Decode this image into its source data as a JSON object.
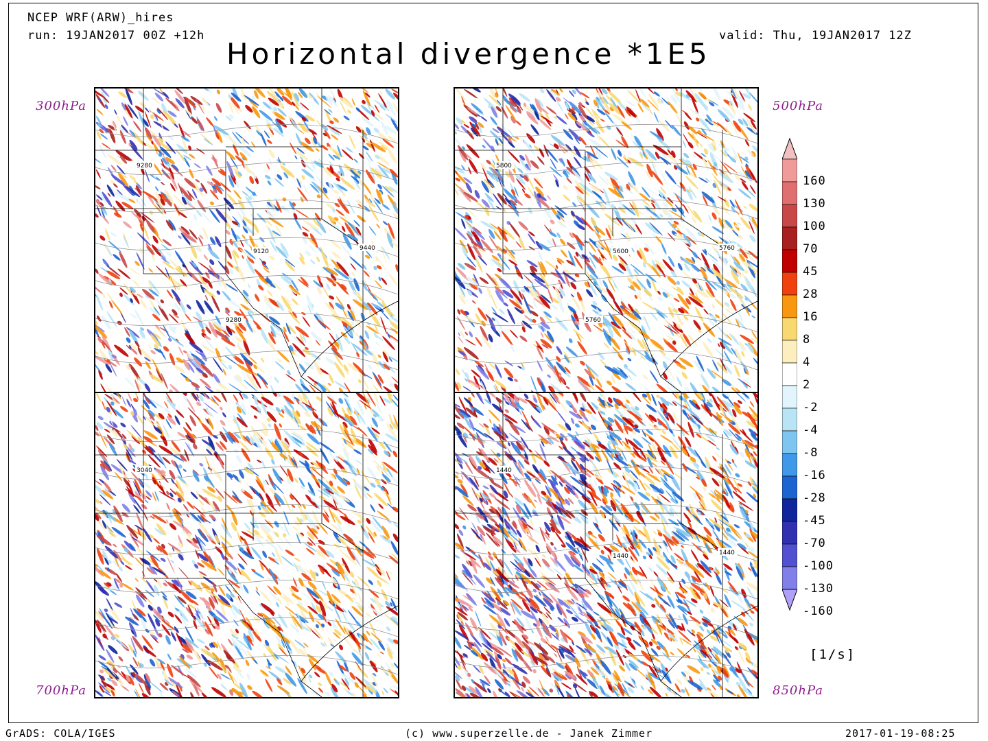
{
  "header": {
    "model": "NCEP WRF(ARW)_hires",
    "run": "run: 19JAN2017 00Z +12h",
    "valid": "valid: Thu, 19JAN2017 12Z",
    "title": "Horizontal divergence *1E5"
  },
  "panels": [
    {
      "level": "300hPa",
      "contours": [
        "9280",
        "9120",
        "9440",
        "9280"
      ],
      "intensity": 0.45
    },
    {
      "level": "500hPa",
      "contours": [
        "5800",
        "5600",
        "5760",
        "5760"
      ],
      "intensity": 0.5
    },
    {
      "level": "700hPa",
      "contours": [
        "3040"
      ],
      "intensity": 0.6
    },
    {
      "level": "850hPa",
      "contours": [
        "1440",
        "1440",
        "1440"
      ],
      "intensity": 0.9
    }
  ],
  "colorbar": {
    "labels": [
      "160",
      "130",
      "100",
      "70",
      "45",
      "28",
      "16",
      "8",
      "4",
      "2",
      "-2",
      "-4",
      "-8",
      "-16",
      "-28",
      "-45",
      "-70",
      "-100",
      "-130",
      "-160"
    ],
    "colors": [
      "#f3c0c0",
      "#f09a9a",
      "#e07070",
      "#c84848",
      "#a82020",
      "#c00000",
      "#f04010",
      "#f89810",
      "#f8d870",
      "#fdeec0",
      "#ffffff",
      "#e2f4fc",
      "#b8e4f6",
      "#80c4f0",
      "#4098e8",
      "#1c64d0",
      "#10249c",
      "#3030b0",
      "#5050d0",
      "#8080e8",
      "#b0a0f8"
    ],
    "unit": "[1/s]"
  },
  "footer": {
    "left": "GrADS: COLA/IGES",
    "center": "(c) www.superzelle.de - Janek Zimmer",
    "right": "2017-01-19-08:25"
  }
}
